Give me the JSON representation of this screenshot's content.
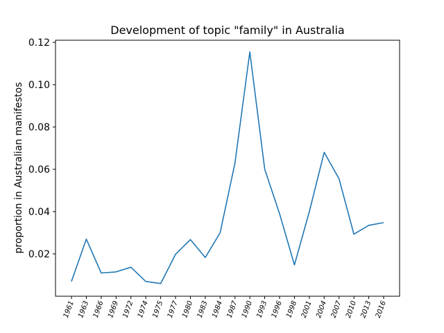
{
  "chart_data": {
    "type": "line",
    "title": "Development of topic \"family\" in Australia",
    "xlabel": "",
    "ylabel": "proportion in Australian manifestos",
    "ylim": [
      0.0,
      0.121
    ],
    "yticks": [
      "0.02",
      "0.04",
      "0.06",
      "0.08",
      "0.10",
      "0.12"
    ],
    "color": "#1f77b4",
    "grid": false,
    "categories": [
      "1961",
      "1963",
      "1966",
      "1969",
      "1972",
      "1974",
      "1975",
      "1977",
      "1980",
      "1983",
      "1984",
      "1987",
      "1990",
      "1993",
      "1996",
      "1998",
      "2001",
      "2004",
      "2007",
      "2010",
      "2013",
      "2016"
    ],
    "series": [
      {
        "values": [
          0.007,
          0.027,
          0.011,
          0.0115,
          0.0137,
          0.007,
          0.006,
          0.0198,
          0.0268,
          0.0183,
          0.03,
          0.063,
          0.1155,
          0.06,
          0.039,
          0.0148,
          0.04,
          0.068,
          0.0555,
          0.0293,
          0.0335,
          0.0348
        ]
      }
    ]
  }
}
